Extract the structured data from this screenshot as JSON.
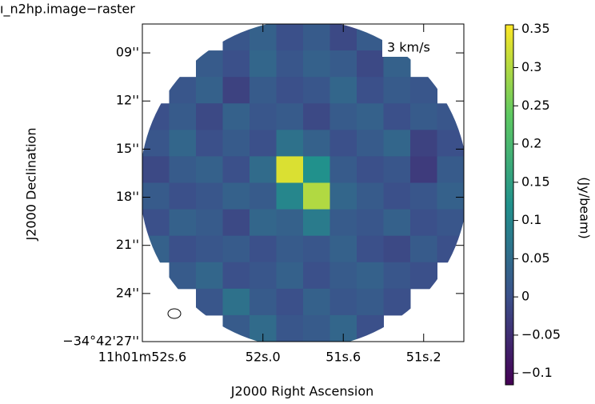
{
  "chart_data": {
    "type": "image",
    "title": "ı_n2hp.image−raster",
    "annotation": "3 km/s",
    "x_label": "J2000 Right Ascension",
    "y_label": "J2000 Declination",
    "colorbar_label": "(Jy/beam)",
    "xlim": [
      52.6,
      51.0
    ],
    "xticks": [
      {
        "value": 52.6,
        "label": "11h01m52s.6"
      },
      {
        "value": 52.0,
        "label": "52s.0"
      },
      {
        "value": 51.6,
        "label": "51s.6"
      },
      {
        "value": 51.2,
        "label": "51s.2"
      }
    ],
    "ylim": [
      27,
      7.2
    ],
    "yticks": [
      {
        "value": 9,
        "label": "09''"
      },
      {
        "value": 12,
        "label": "12''"
      },
      {
        "value": 15,
        "label": "15''"
      },
      {
        "value": 18,
        "label": "18''"
      },
      {
        "value": 21,
        "label": "21''"
      },
      {
        "value": 24,
        "label": "24''"
      },
      {
        "value": 27,
        "label": "−34°42'27''"
      }
    ],
    "clim": [
      -0.115,
      0.356
    ],
    "cticks": [
      {
        "value": -0.1,
        "label": "−0.1"
      },
      {
        "value": -0.05,
        "label": "−0.05"
      },
      0,
      0.05,
      0.1,
      0.15,
      0.2,
      0.25,
      0.3,
      0.35
    ],
    "colormap": "viridis",
    "z": [
      [
        null,
        null,
        null,
        0.01,
        0.03,
        0.0,
        0.02,
        -0.01,
        0.02,
        null,
        null,
        null
      ],
      [
        null,
        null,
        0.02,
        0.0,
        0.04,
        0.01,
        0.03,
        0.02,
        -0.01,
        0.03,
        null,
        null
      ],
      [
        null,
        0.01,
        0.03,
        -0.02,
        0.02,
        0.0,
        0.01,
        0.04,
        0.0,
        0.02,
        0.01,
        null
      ],
      [
        0.0,
        0.02,
        -0.01,
        0.03,
        0.01,
        0.02,
        -0.01,
        0.02,
        0.03,
        0.0,
        0.02,
        0.01
      ],
      [
        0.01,
        0.04,
        0.0,
        0.02,
        0.0,
        0.06,
        0.03,
        0.0,
        0.02,
        0.04,
        -0.02,
        0.0
      ],
      [
        -0.01,
        0.02,
        0.03,
        0.0,
        0.05,
        0.33,
        0.12,
        0.02,
        0.0,
        0.01,
        -0.03,
        0.02
      ],
      [
        0.02,
        0.0,
        0.01,
        0.03,
        0.02,
        0.1,
        0.3,
        0.04,
        0.02,
        0.0,
        0.01,
        0.03
      ],
      [
        0.0,
        0.03,
        0.02,
        -0.01,
        0.04,
        0.03,
        0.08,
        0.02,
        0.01,
        0.03,
        0.0,
        0.01
      ],
      [
        0.03,
        0.0,
        0.01,
        0.02,
        0.0,
        0.02,
        0.01,
        0.03,
        0.0,
        -0.01,
        0.02,
        0.0
      ],
      [
        null,
        0.02,
        0.04,
        0.0,
        0.01,
        0.03,
        0.0,
        0.02,
        0.03,
        0.01,
        0.0,
        null
      ],
      [
        null,
        null,
        0.01,
        0.06,
        0.02,
        0.0,
        0.03,
        0.01,
        0.02,
        0.0,
        null,
        null
      ],
      [
        null,
        null,
        null,
        0.02,
        0.05,
        0.01,
        0.02,
        0.04,
        0.0,
        null,
        null,
        null
      ]
    ]
  }
}
